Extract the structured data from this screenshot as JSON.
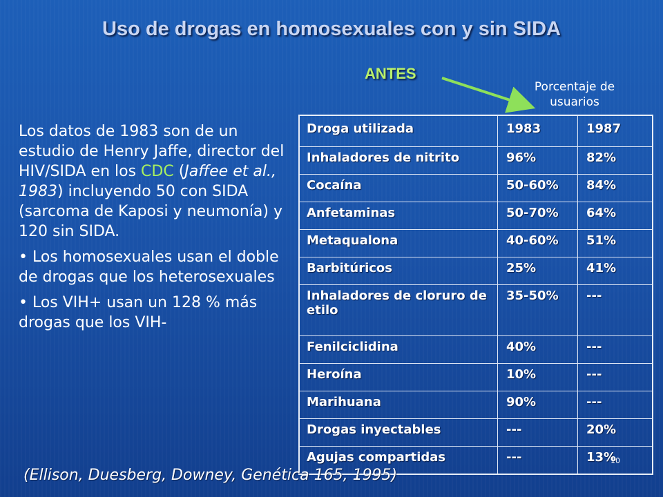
{
  "slide": {
    "title": "Uso de drogas en homosexuales con y sin SIDA",
    "antes": "ANTES",
    "percent_label_line1": "Porcentaje de",
    "percent_label_line2": "usuarios",
    "left_text": {
      "p1_a": "Los datos de 1983 son de un estudio de Henry Jaffe, director del HIV/SIDA en los ",
      "p1_cdc": "CDC",
      "p1_b": " (",
      "p1_cite": "Jaffee et al., 1983",
      "p1_c": ") incluyendo 50 con SIDA (sarcoma de Kaposi y neumonía) y 120 sin SIDA.",
      "bullet1": "• Los homosexuales usan el doble de drogas que los heterosexuales",
      "bullet2": "• Los VIH+ usan un 128 % más drogas que los VIH-"
    },
    "table": {
      "headers": [
        "Droga utilizada",
        "1983",
        "1987"
      ],
      "rows": [
        [
          "Inhaladores de nitrito",
          "96%",
          "82%"
        ],
        [
          "Cocaína",
          "50-60%",
          "84%"
        ],
        [
          "Anfetaminas",
          "50-70%",
          "64%"
        ],
        [
          "Metaqualona",
          "40-60%",
          "51%"
        ],
        [
          "Barbitúricos",
          "25%",
          "41%"
        ],
        [
          "Inhaladores de cloruro de etilo",
          "35-50%",
          "---"
        ],
        [
          "Fenilciclidina",
          "40%",
          "---"
        ],
        [
          "Heroína",
          "10%",
          "---"
        ],
        [
          "Marihuana",
          "90%",
          "---"
        ],
        [
          "Drogas inyectables",
          "---",
          "20%"
        ],
        [
          "Agujas compartidas",
          "---",
          "13%"
        ]
      ]
    },
    "citation": "(Ellison, Duesberg, Downey, Genética 165, 1995)",
    "slide_number": "10",
    "colors": {
      "background": "#1a52a8",
      "title": "#c9d6f2",
      "accent_green": "#a8ef5f"
    }
  }
}
